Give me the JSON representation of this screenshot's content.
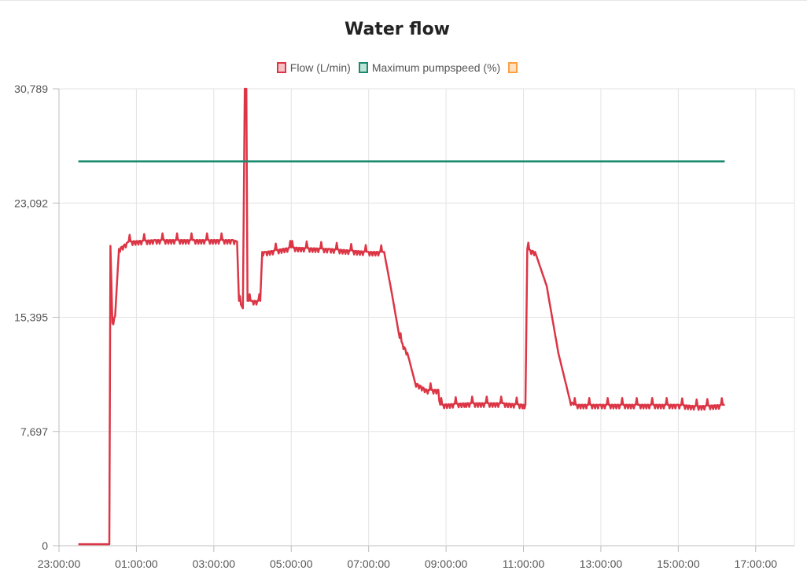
{
  "chart_data": {
    "type": "line",
    "title": "Water flow",
    "xlabel": "",
    "ylabel": "",
    "x_tick_labels": [
      "23:00:00",
      "01:00:00",
      "03:00:00",
      "05:00:00",
      "07:00:00",
      "09:00:00",
      "11:00:00",
      "13:00:00",
      "15:00:00",
      "17:00:00"
    ],
    "x_range_hours": [
      -1,
      18
    ],
    "y_tick_labels": [
      "0",
      "7,697",
      "15,395",
      "23,092",
      "30,789"
    ],
    "ylim": [
      0,
      30.789
    ],
    "grid": true,
    "legend_position": "top-center",
    "series": [
      {
        "name": "Flow (L/min)",
        "color": "#dc3545",
        "x_hours": [
          -0.5,
          0.3,
          0.33,
          0.38,
          0.45,
          0.55,
          0.8,
          1.5,
          2.5,
          3.5,
          3.6,
          3.65,
          3.75,
          3.8,
          3.84,
          3.87,
          3.9,
          4.0,
          4.2,
          4.25,
          4.35,
          5.0,
          6.0,
          7.0,
          7.4,
          7.6,
          7.8,
          8.0,
          8.2,
          8.5,
          8.8,
          8.85,
          9.5,
          10.5,
          11.0,
          11.05,
          11.1,
          11.3,
          11.6,
          11.9,
          12.2,
          12.3,
          13.0,
          14.0,
          15.0,
          15.5,
          16.2
        ],
        "y": [
          0.1,
          0.1,
          20.2,
          15.0,
          15.5,
          20.0,
          20.5,
          20.6,
          20.6,
          20.6,
          20.5,
          16.5,
          16.0,
          30.789,
          30.789,
          16.5,
          16.5,
          16.5,
          16.5,
          19.8,
          19.8,
          20.1,
          20.0,
          19.8,
          19.8,
          17.0,
          14.0,
          13.0,
          11.0,
          10.5,
          10.5,
          9.5,
          9.6,
          9.6,
          9.5,
          9.5,
          20.0,
          19.8,
          17.5,
          13.0,
          9.8,
          9.5,
          9.5,
          9.5,
          9.5,
          9.4,
          9.5
        ]
      },
      {
        "name": "Maximum pumpspeed (%)",
        "color": "#1a8a6e",
        "x_hours": [
          -0.5,
          16.2
        ],
        "y": [
          25.9,
          25.9
        ]
      },
      {
        "name": "",
        "color": "#ff9f40",
        "x_hours": [],
        "y": []
      }
    ]
  }
}
